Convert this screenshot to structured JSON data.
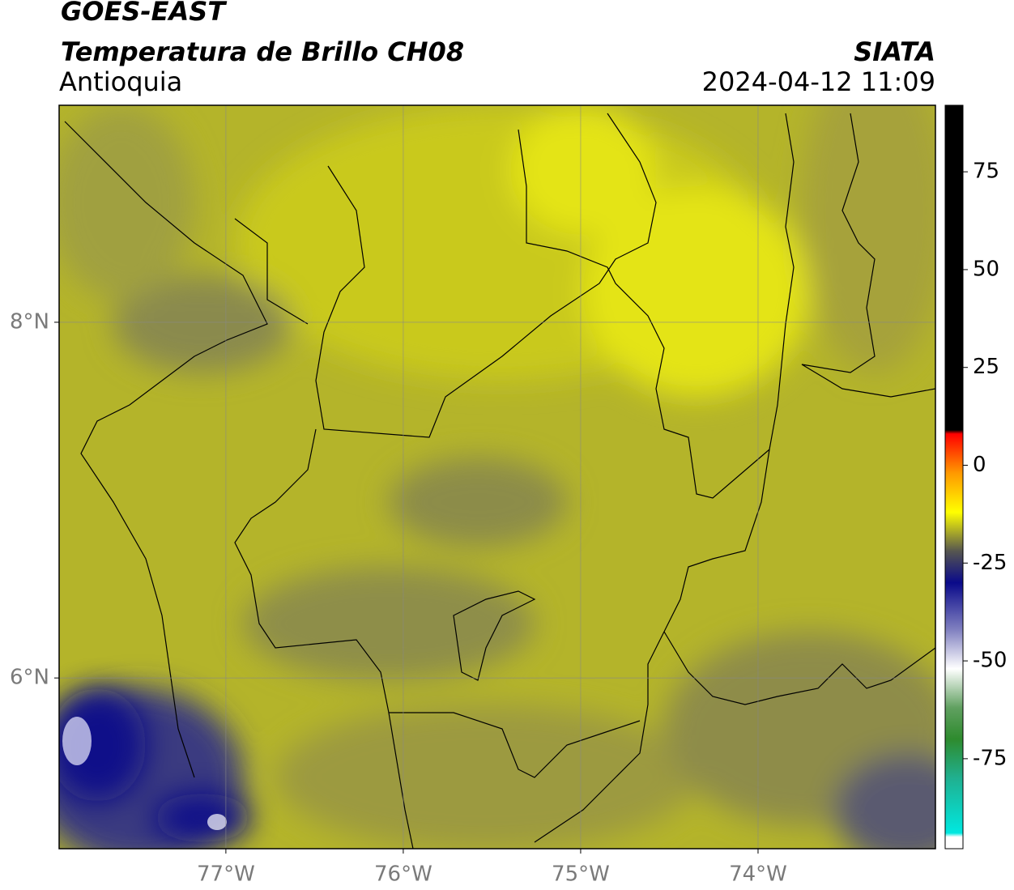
{
  "chart_data": {
    "type": "map",
    "title": "GOES-EAST",
    "subtitle": "Temperatura de Brillo CH08",
    "region": "Antioquia",
    "source": "SIATA",
    "datetime": "2024-04-12 11:09",
    "xlim": [
      -77.94,
      -73.0
    ],
    "xticks": [
      {
        "value": -77,
        "label": "77°W"
      },
      {
        "value": -76,
        "label": "76°W"
      },
      {
        "value": -75,
        "label": "75°W"
      },
      {
        "value": -74,
        "label": "74°W"
      }
    ],
    "ylim": [
      5.04,
      9.22
    ],
    "yticks": [
      {
        "value": 6,
        "label": "6°N"
      },
      {
        "value": 8,
        "label": "8°N"
      }
    ],
    "grid": true,
    "colorbar": {
      "lim": [
        -98,
        92
      ],
      "ticks": [
        -75,
        -50,
        -25,
        0,
        25,
        50,
        75
      ],
      "stops": [
        {
          "value": -98,
          "color": "#ffffff"
        },
        {
          "value": -95,
          "color": "#ffffff"
        },
        {
          "value": -94,
          "color": "#00e8e0"
        },
        {
          "value": -80,
          "color": "#20b090"
        },
        {
          "value": -70,
          "color": "#2e8b2e"
        },
        {
          "value": -62,
          "color": "#60a060"
        },
        {
          "value": -52,
          "color": "#ffffff"
        },
        {
          "value": -42,
          "color": "#8080c0"
        },
        {
          "value": -30,
          "color": "#0a0a8a"
        },
        {
          "value": -22,
          "color": "#555550"
        },
        {
          "value": -12,
          "color": "#ffff00"
        },
        {
          "value": -2,
          "color": "#ff9900"
        },
        {
          "value": 8,
          "color": "#ff0000"
        },
        {
          "value": 9,
          "color": "#000000"
        },
        {
          "value": 92,
          "color": "#000000"
        }
      ]
    }
  }
}
